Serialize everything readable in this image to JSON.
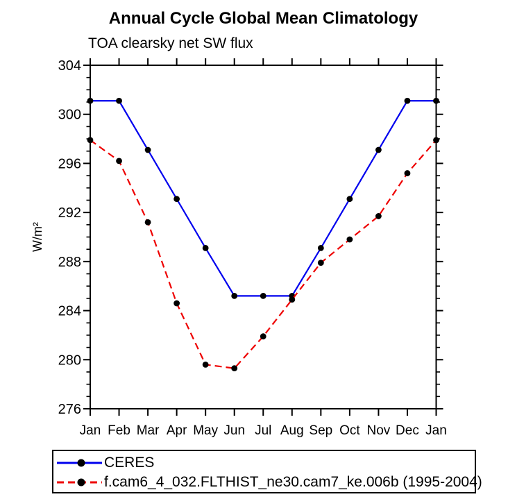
{
  "chart_data": {
    "type": "line",
    "title": "Annual Cycle Global Mean Climatology",
    "subtitle": "TOA clearsky net SW flux",
    "ylabel": "W/m²",
    "categories": [
      "Jan",
      "Feb",
      "Mar",
      "Apr",
      "May",
      "Jun",
      "Jul",
      "Aug",
      "Sep",
      "Oct",
      "Nov",
      "Dec",
      "Jan"
    ],
    "ylim": [
      276,
      304
    ],
    "yticks_major": [
      276,
      280,
      284,
      288,
      292,
      296,
      300,
      304
    ],
    "ytick_minor_step": 1,
    "grid": "off",
    "legend_position": "bottom",
    "axis_color": "#000000",
    "marker_color": "#000000",
    "series": [
      {
        "name": "CERES",
        "color": "#0000ee",
        "style": "solid",
        "marker": "circle",
        "values": [
          301.1,
          301.1,
          297.1,
          293.1,
          289.1,
          285.2,
          285.2,
          285.2,
          289.1,
          293.1,
          297.1,
          301.1,
          301.1
        ]
      },
      {
        "name": "f.cam6_4_032.FLTHIST_ne30.cam7_ke.006b (1995-2004)",
        "color": "#ee0000",
        "style": "dashed",
        "marker": "circle",
        "values": [
          297.9,
          296.2,
          291.2,
          284.6,
          279.6,
          279.3,
          281.9,
          284.9,
          287.9,
          289.8,
          291.7,
          295.2,
          297.9
        ]
      }
    ]
  }
}
